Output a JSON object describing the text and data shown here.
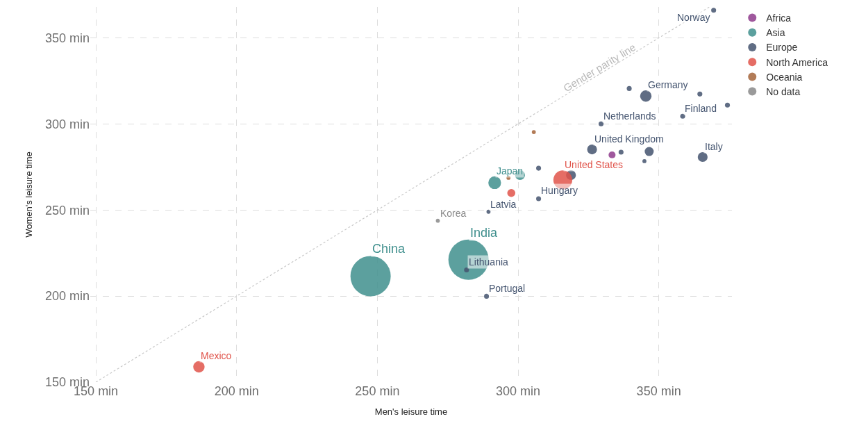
{
  "chart_data": {
    "type": "bubble",
    "xlabel": "Men's leisure time",
    "ylabel": "Women's leisure time",
    "xlim": [
      148,
      376
    ],
    "ylim": [
      150,
      368
    ],
    "xticks": [
      {
        "value": 150,
        "label": "150 min"
      },
      {
        "value": 200,
        "label": "200 min"
      },
      {
        "value": 250,
        "label": "250 min"
      },
      {
        "value": 300,
        "label": "300 min"
      },
      {
        "value": 350,
        "label": "350 min"
      }
    ],
    "yticks": [
      {
        "value": 150,
        "label": "150 min"
      },
      {
        "value": 200,
        "label": "200 min"
      },
      {
        "value": 250,
        "label": "250 min"
      },
      {
        "value": 300,
        "label": "300 min"
      },
      {
        "value": 350,
        "label": "350 min"
      }
    ],
    "grid": true,
    "legend": "top right",
    "marker": "circle",
    "series": [
      {
        "name": "Africa",
        "color": "#8e3b8c",
        "x": [
          333.4
        ],
        "values": [
          282
        ],
        "sizes": [
          0.03
        ]
      },
      {
        "name": "Asia",
        "color": "#3f8f8d",
        "x": [
          247.6,
          282.4,
          291.7,
          300.7
        ],
        "values": [
          211.6,
          221.2,
          265.9,
          270.3
        ],
        "sizes": [
          1,
          1,
          0.1,
          0.06
        ]
      },
      {
        "name": "Europe",
        "color": "#44546f",
        "x": [
          369.5,
          345.4,
          339.5,
          364.6,
          358.5,
          374.4,
          329.5,
          326.3,
          336.6,
          346.6,
          344.9,
          365.6,
          307.3,
          318.8,
          307.3,
          289.5,
          281.7,
          288.8
        ],
        "values": [
          366.1,
          316.2,
          320.6,
          317.4,
          304.5,
          311,
          300.1,
          285.2,
          283.6,
          284,
          278.4,
          280.8,
          274.3,
          270.3,
          256.6,
          249,
          215.2,
          199.9
        ],
        "sizes": [
          0.015,
          0.08,
          0.015,
          0.015,
          0.015,
          0.015,
          0.015,
          0.06,
          0.015,
          0.05,
          0.01,
          0.06,
          0.015,
          0.06,
          0.015,
          0.01,
          0.015,
          0.015
        ]
      },
      {
        "name": "North America",
        "color": "#e0534a",
        "x": [
          315.9,
          297.6,
          186.6
        ],
        "values": [
          267.5,
          259.9,
          158.9
        ],
        "sizes": [
          0.22,
          0.04,
          0.08
        ]
      },
      {
        "name": "Oceania",
        "color": "#a5643a",
        "x": [
          305.6,
          296.6
        ],
        "values": [
          295.3,
          268.7
        ],
        "sizes": [
          0.01,
          0.01
        ]
      },
      {
        "name": "No data",
        "color": "#888888",
        "x": [
          271.5
        ],
        "values": [
          243.8
        ],
        "sizes": [
          0.01
        ]
      },
      {
        "name": "Gender parity line",
        "type": "line",
        "color": "#c8c8c8",
        "line_style": "dotted",
        "marker": "none",
        "x": [
          150,
          368
        ],
        "values": [
          150,
          368
        ]
      }
    ],
    "annotations": [
      {
        "text": "Norway",
        "x": 369.5,
        "y": 366.1
      },
      {
        "text": "Germany",
        "x": 345.4,
        "y": 316.2
      },
      {
        "text": "Finland",
        "x": 358.5,
        "y": 304.5
      },
      {
        "text": "Netherlands",
        "x": 329.5,
        "y": 300.1
      },
      {
        "text": "United Kingdom",
        "x": 326.3,
        "y": 285.2
      },
      {
        "text": "Italy",
        "x": 365.6,
        "y": 280.8
      },
      {
        "text": "United States",
        "x": 315.9,
        "y": 267.5
      },
      {
        "text": "Japan",
        "x": 291.7,
        "y": 265.9
      },
      {
        "text": "Hungary",
        "x": 307.3,
        "y": 256.6
      },
      {
        "text": "Latvia",
        "x": 289.5,
        "y": 249
      },
      {
        "text": "Korea",
        "x": 271.5,
        "y": 243.8
      },
      {
        "text": "India",
        "x": 282.4,
        "y": 221.2
      },
      {
        "text": "Lithuania",
        "x": 281.7,
        "y": 215.2
      },
      {
        "text": "Portugal",
        "x": 288.8,
        "y": 199.9
      },
      {
        "text": "China",
        "x": 247.6,
        "y": 211.6
      },
      {
        "text": "Mexico",
        "x": 186.6,
        "y": 158.9
      }
    ]
  }
}
